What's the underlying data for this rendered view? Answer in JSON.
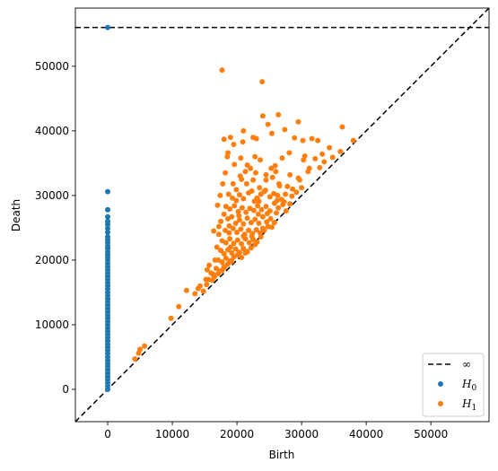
{
  "chart_data": {
    "type": "scatter",
    "xlabel": "Birth",
    "ylabel": "Death",
    "xlim": [
      -5000,
      59000
    ],
    "ylim": [
      -5000,
      59000
    ],
    "xticks": [
      0,
      10000,
      20000,
      30000,
      40000,
      50000
    ],
    "yticks": [
      0,
      10000,
      20000,
      30000,
      40000,
      50000
    ],
    "xtick_labels": [
      "0",
      "10000",
      "20000",
      "30000",
      "40000",
      "50000"
    ],
    "ytick_labels": [
      "0",
      "10000",
      "20000",
      "30000",
      "40000",
      "50000"
    ],
    "infinity_level": 56000,
    "grid": false,
    "legend_position": "lower-right",
    "legend": [
      {
        "key": "inf",
        "label": "∞",
        "marker": "dashed-line",
        "color": "#000000"
      },
      {
        "key": "h0",
        "label": "H",
        "sub": "0",
        "marker": "dot",
        "color": "#1f77b4"
      },
      {
        "key": "h1",
        "label": "H",
        "sub": "1",
        "marker": "dot",
        "color": "#ff7f0e"
      }
    ],
    "series": [
      {
        "name": "H0",
        "color": "#1f77b4",
        "points": [
          [
            0,
            56000
          ],
          [
            0,
            30600
          ],
          [
            0,
            27800
          ],
          [
            0,
            26700
          ],
          [
            0,
            26000
          ],
          [
            0,
            25500
          ],
          [
            0,
            24900
          ],
          [
            0,
            24300
          ],
          [
            0,
            23600
          ],
          [
            0,
            23100
          ],
          [
            0,
            22700
          ],
          [
            0,
            22200
          ],
          [
            0,
            21800
          ],
          [
            0,
            21300
          ],
          [
            0,
            20900
          ],
          [
            0,
            20400
          ],
          [
            0,
            20000
          ],
          [
            0,
            19500
          ],
          [
            0,
            19000
          ],
          [
            0,
            18500
          ],
          [
            0,
            18000
          ],
          [
            0,
            17500
          ],
          [
            0,
            17000
          ],
          [
            0,
            16500
          ],
          [
            0,
            16000
          ],
          [
            0,
            15500
          ],
          [
            0,
            15000
          ],
          [
            0,
            14500
          ],
          [
            0,
            14000
          ],
          [
            0,
            13500
          ],
          [
            0,
            13000
          ],
          [
            0,
            12500
          ],
          [
            0,
            12000
          ],
          [
            0,
            11500
          ],
          [
            0,
            11000
          ],
          [
            0,
            10500
          ],
          [
            0,
            10000
          ],
          [
            0,
            9500
          ],
          [
            0,
            9000
          ],
          [
            0,
            8500
          ],
          [
            0,
            8000
          ],
          [
            0,
            7500
          ],
          [
            0,
            7000
          ],
          [
            0,
            6500
          ],
          [
            0,
            6000
          ],
          [
            0,
            5500
          ],
          [
            0,
            5000
          ],
          [
            0,
            4500
          ],
          [
            0,
            4000
          ],
          [
            0,
            3500
          ],
          [
            0,
            3000
          ],
          [
            0,
            2500
          ],
          [
            0,
            2000
          ],
          [
            0,
            1500
          ],
          [
            0,
            1000
          ],
          [
            0,
            500
          ],
          [
            0,
            0
          ]
        ]
      },
      {
        "name": "H1",
        "color": "#ff7f0e",
        "points": [
          [
            4200,
            4700
          ],
          [
            4800,
            5600
          ],
          [
            5000,
            6200
          ],
          [
            5700,
            6700
          ],
          [
            9800,
            11000
          ],
          [
            11000,
            12800
          ],
          [
            12200,
            15300
          ],
          [
            13500,
            14800
          ],
          [
            14000,
            15600
          ],
          [
            14300,
            16000
          ],
          [
            14800,
            15200
          ],
          [
            15200,
            17000
          ],
          [
            15400,
            18500
          ],
          [
            15700,
            19200
          ],
          [
            16000,
            18000
          ],
          [
            16300,
            17800
          ],
          [
            16600,
            20000
          ],
          [
            16900,
            22000
          ],
          [
            17200,
            24000
          ],
          [
            17500,
            26000
          ],
          [
            17000,
            28500
          ],
          [
            17400,
            30000
          ],
          [
            17800,
            31800
          ],
          [
            18200,
            33500
          ],
          [
            18500,
            36000
          ],
          [
            18000,
            38700
          ],
          [
            17700,
            49400
          ],
          [
            19000,
            39000
          ],
          [
            21000,
            40000
          ],
          [
            22500,
            39000
          ],
          [
            23000,
            38800
          ],
          [
            23900,
            47600
          ],
          [
            24000,
            42300
          ],
          [
            24800,
            41000
          ],
          [
            25400,
            39600
          ],
          [
            26400,
            42500
          ],
          [
            27400,
            40200
          ],
          [
            28900,
            38900
          ],
          [
            29500,
            41400
          ],
          [
            30200,
            38500
          ],
          [
            31600,
            38800
          ],
          [
            32500,
            38500
          ],
          [
            34300,
            37400
          ],
          [
            36000,
            36800
          ],
          [
            36300,
            40600
          ],
          [
            38000,
            38500
          ],
          [
            33500,
            35200
          ],
          [
            32800,
            34300
          ],
          [
            31000,
            33700
          ],
          [
            30300,
            35500
          ],
          [
            29500,
            32700
          ],
          [
            28200,
            33200
          ],
          [
            27000,
            35800
          ],
          [
            26000,
            33700
          ],
          [
            25300,
            34200
          ],
          [
            23600,
            35500
          ],
          [
            22800,
            36000
          ],
          [
            21600,
            34700
          ],
          [
            20600,
            35800
          ],
          [
            19600,
            34800
          ],
          [
            19500,
            37900
          ],
          [
            20500,
            33000
          ],
          [
            21500,
            31800
          ],
          [
            22500,
            32400
          ],
          [
            23500,
            31200
          ],
          [
            24500,
            32400
          ],
          [
            25500,
            32800
          ],
          [
            26500,
            31800
          ],
          [
            27500,
            30200
          ],
          [
            28500,
            29900
          ],
          [
            29200,
            30500
          ],
          [
            30000,
            31200
          ],
          [
            18700,
            30200
          ],
          [
            19300,
            29600
          ],
          [
            19900,
            29200
          ],
          [
            20400,
            30100
          ],
          [
            21000,
            29500
          ],
          [
            21800,
            30400
          ],
          [
            22300,
            30700
          ],
          [
            23100,
            29600
          ],
          [
            23700,
            30200
          ],
          [
            24400,
            30800
          ],
          [
            25100,
            29800
          ],
          [
            25700,
            30300
          ],
          [
            26300,
            30000
          ],
          [
            26900,
            29400
          ],
          [
            18300,
            28300
          ],
          [
            18900,
            27900
          ],
          [
            19600,
            28400
          ],
          [
            20200,
            27500
          ],
          [
            20800,
            28100
          ],
          [
            21400,
            27400
          ],
          [
            22000,
            28000
          ],
          [
            22600,
            27700
          ],
          [
            23200,
            28400
          ],
          [
            23800,
            27800
          ],
          [
            24500,
            28300
          ],
          [
            25100,
            27600
          ],
          [
            25800,
            28800
          ],
          [
            26400,
            28100
          ],
          [
            27100,
            28600
          ],
          [
            27600,
            27600
          ],
          [
            18600,
            26400
          ],
          [
            19200,
            26700
          ],
          [
            19800,
            25700
          ],
          [
            20400,
            26200
          ],
          [
            21000,
            25600
          ],
          [
            21600,
            26500
          ],
          [
            22200,
            25800
          ],
          [
            22800,
            26300
          ],
          [
            23400,
            25700
          ],
          [
            24000,
            26700
          ],
          [
            24600,
            25900
          ],
          [
            25200,
            26400
          ],
          [
            25800,
            25800
          ],
          [
            18200,
            24600
          ],
          [
            18800,
            24200
          ],
          [
            19400,
            24900
          ],
          [
            20000,
            24300
          ],
          [
            20600,
            24800
          ],
          [
            21200,
            24000
          ],
          [
            21800,
            24600
          ],
          [
            22400,
            24100
          ],
          [
            23000,
            24700
          ],
          [
            23600,
            24200
          ],
          [
            24200,
            24600
          ],
          [
            24800,
            25200
          ],
          [
            17700,
            23000
          ],
          [
            18300,
            22700
          ],
          [
            18900,
            23300
          ],
          [
            19500,
            22600
          ],
          [
            20100,
            23100
          ],
          [
            20700,
            22500
          ],
          [
            21300,
            23300
          ],
          [
            21900,
            22700
          ],
          [
            22500,
            23200
          ],
          [
            23100,
            22800
          ],
          [
            23700,
            23600
          ],
          [
            17500,
            21500
          ],
          [
            18000,
            21000
          ],
          [
            18600,
            21600
          ],
          [
            19200,
            21100
          ],
          [
            19800,
            21700
          ],
          [
            20400,
            21200
          ],
          [
            21000,
            21800
          ],
          [
            21600,
            21300
          ],
          [
            22200,
            21900
          ],
          [
            22800,
            22400
          ],
          [
            17100,
            20000
          ],
          [
            17700,
            19700
          ],
          [
            18300,
            20300
          ],
          [
            18900,
            19900
          ],
          [
            19500,
            20500
          ],
          [
            20100,
            20800
          ],
          [
            20700,
            20400
          ],
          [
            21300,
            21100
          ],
          [
            16800,
            18700
          ],
          [
            17400,
            18300
          ],
          [
            18000,
            19000
          ],
          [
            18600,
            19400
          ],
          [
            19200,
            19800
          ],
          [
            16500,
            17400
          ],
          [
            17100,
            17900
          ],
          [
            17700,
            18400
          ],
          [
            18100,
            18900
          ],
          [
            15600,
            17000
          ],
          [
            16200,
            16900
          ],
          [
            15300,
            16200
          ],
          [
            24500,
            33200
          ],
          [
            25900,
            34600
          ],
          [
            22100,
            34200
          ],
          [
            20900,
            38300
          ],
          [
            18600,
            36600
          ],
          [
            21300,
            33700
          ],
          [
            22900,
            33500
          ],
          [
            19400,
            31800
          ],
          [
            20700,
            32500
          ],
          [
            26600,
            31500
          ],
          [
            27800,
            31400
          ],
          [
            28600,
            31000
          ],
          [
            29700,
            32400
          ],
          [
            31200,
            34200
          ],
          [
            32100,
            35700
          ],
          [
            33200,
            36400
          ],
          [
            34800,
            35900
          ],
          [
            28100,
            36600
          ],
          [
            30500,
            36100
          ],
          [
            26200,
            29200
          ],
          [
            27300,
            29000
          ],
          [
            28200,
            28700
          ],
          [
            24200,
            30600
          ],
          [
            23400,
            29100
          ],
          [
            22700,
            29100
          ],
          [
            19900,
            30900
          ],
          [
            18000,
            27100
          ],
          [
            17200,
            25200
          ],
          [
            16400,
            24500
          ],
          [
            18800,
            25300
          ],
          [
            20300,
            26900
          ],
          [
            23300,
            27100
          ],
          [
            24700,
            27200
          ],
          [
            26100,
            27300
          ],
          [
            19000,
            22000
          ],
          [
            21000,
            23700
          ],
          [
            22300,
            23700
          ],
          [
            24000,
            24900
          ],
          [
            25400,
            25100
          ]
        ]
      }
    ]
  }
}
